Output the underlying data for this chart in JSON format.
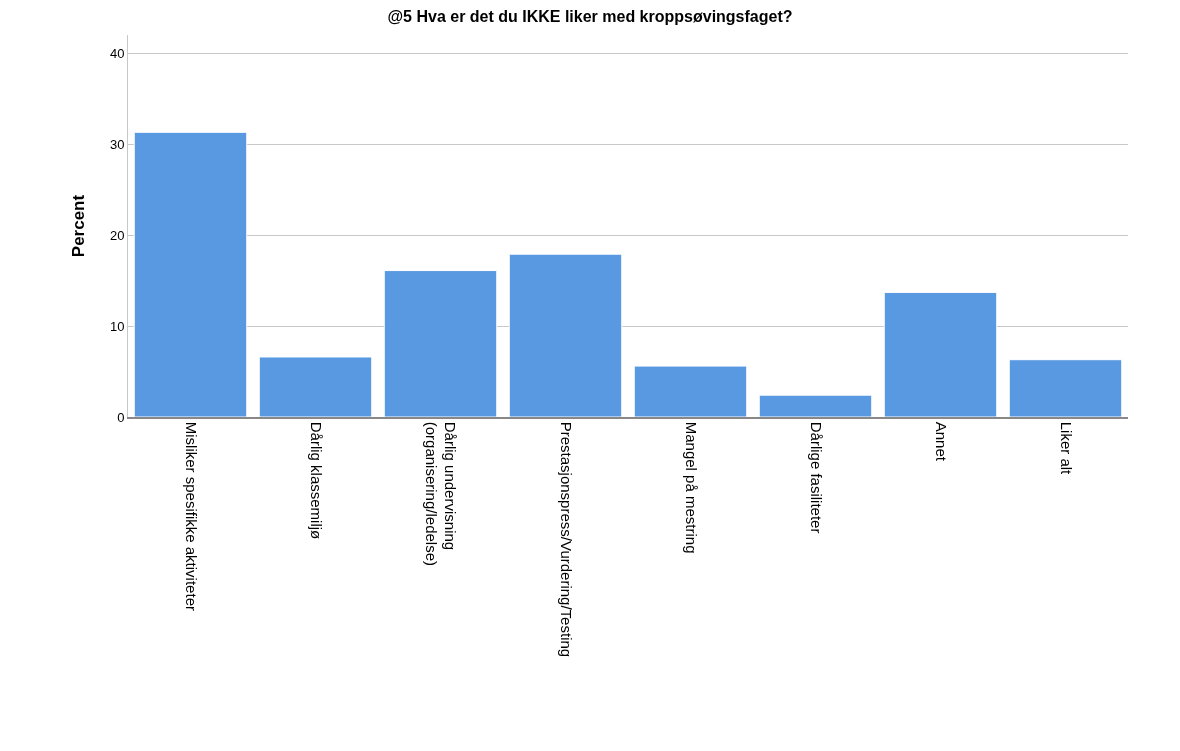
{
  "chart_data": {
    "type": "bar",
    "title": "@5 Hva er det du IKKE liker med kroppsøvingsfaget?",
    "ylabel": "Percent",
    "categories": [
      "Misliker spesifikke aktiviteter",
      "Dårlig klassemiljø",
      "Dårlig undervisning\n(organisering/ledelse)",
      "Prestasjonspress/Vurdering/Testing",
      "Mangel på mestring",
      "Dårlige fasiliteter",
      "Annet",
      "Liker alt"
    ],
    "values": [
      31.3,
      6.6,
      16.1,
      17.9,
      5.6,
      2.4,
      13.7,
      6.3
    ],
    "color": "#5899e2",
    "ylim": [
      0,
      42
    ],
    "yticks": [
      0,
      10,
      20,
      30,
      40
    ],
    "grid": "y",
    "legend": false
  }
}
